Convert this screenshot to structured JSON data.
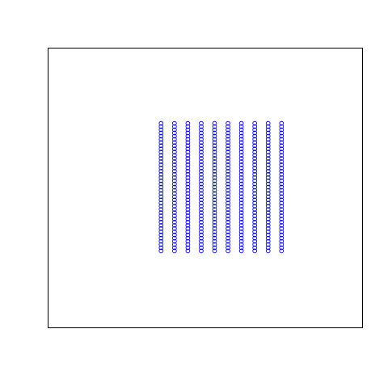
{
  "chart_data": {
    "type": "scatter",
    "title": "",
    "xlabel": "",
    "ylabel": "",
    "grid": false,
    "axes_visible": false,
    "marker": "open-circle",
    "colors": {
      "marker": "#0000cc",
      "frame": "#000000",
      "background": "#ffffff"
    },
    "xlim": [
      0,
      300
    ],
    "ylim": [
      0,
      350
    ],
    "x_columns": [
      107.7,
      120.5,
      133.3,
      146.1,
      158.9,
      171.7,
      184.5,
      197.3,
      210.1,
      222.9
    ],
    "y_start": 96,
    "y_end": 256,
    "y_step": 4
  }
}
